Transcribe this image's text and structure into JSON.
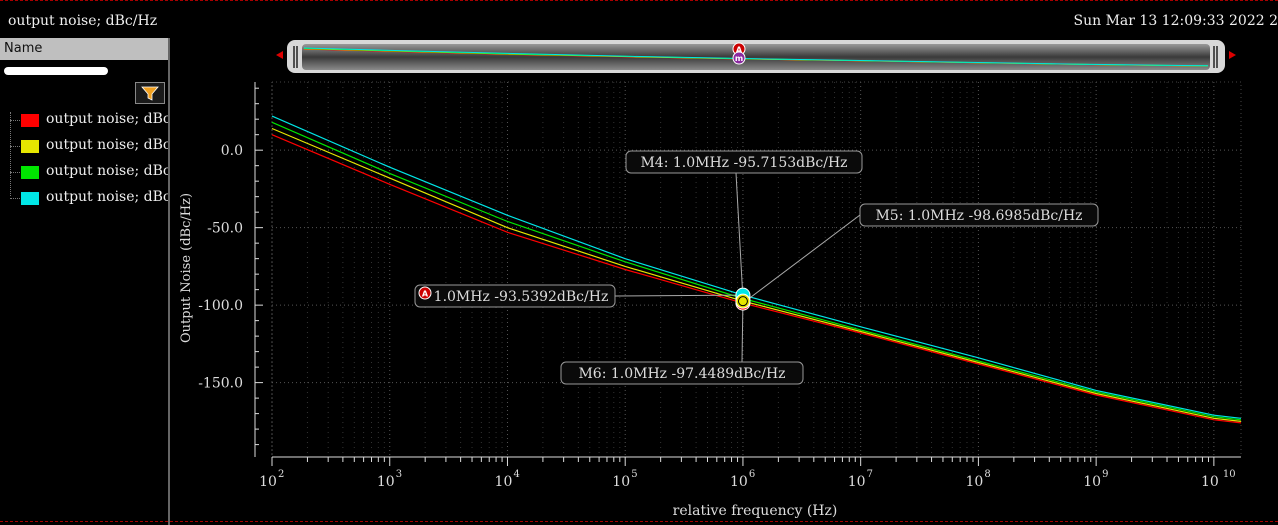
{
  "window": {
    "title": "output noise; dBc/Hz",
    "timestamp": "Sun Mar 13 12:09:33 2022  2"
  },
  "sidebar": {
    "header": "Name",
    "items": [
      {
        "label": "output noise; dBc/Hz",
        "color": "#ff0000"
      },
      {
        "label": "output noise; dBc/Hz",
        "color": "#e6e600"
      },
      {
        "label": "output noise; dBc/Hz",
        "color": "#00e600"
      },
      {
        "label": "output noise; dBc/Hz",
        "color": "#00e6e6"
      }
    ]
  },
  "chart_data": {
    "type": "line",
    "xlabel": "relative frequency (Hz)",
    "ylabel": "Output Noise (dBc/Hz)",
    "xscale": "log",
    "xlim": [
      100,
      17000000000
    ],
    "ylim": [
      -198,
      44
    ],
    "x_ticks": [
      "10",
      "10",
      "10",
      "10",
      "10",
      "10",
      "10",
      "10",
      "10"
    ],
    "x_tick_exponents": [
      "2",
      "3",
      "4",
      "5",
      "6",
      "7",
      "8",
      "9",
      "10"
    ],
    "x_tick_values": [
      100,
      1000,
      10000,
      100000,
      1000000,
      10000000,
      100000000,
      1000000000,
      10000000000
    ],
    "y_ticks": [
      "0.0",
      "-50.0",
      "-100.0",
      "-150.0"
    ],
    "y_tick_values": [
      0,
      -50,
      -100,
      -150
    ],
    "grid": true,
    "x": [
      100,
      1000,
      10000,
      100000,
      1000000,
      10000000,
      100000000,
      1000000000,
      10000000000,
      17000000000
    ],
    "series": [
      {
        "color": "#ff0000",
        "values": [
          10,
          -22,
          -53,
          -77,
          -98.7,
          -118,
          -138,
          -158,
          -174,
          -176
        ]
      },
      {
        "color": "#e6e600",
        "values": [
          14,
          -18,
          -50,
          -75,
          -97.4,
          -117,
          -137,
          -157,
          -173,
          -175
        ]
      },
      {
        "color": "#00e600",
        "values": [
          18,
          -15,
          -46,
          -72,
          -95.7,
          -116,
          -136,
          -156,
          -172,
          -174
        ]
      },
      {
        "color": "#00e6e6",
        "values": [
          22,
          -11,
          -42,
          -70,
          -93.5,
          -114,
          -134,
          -155,
          -171,
          -173
        ]
      }
    ],
    "markers": [
      {
        "label": "M4: 1.0MHz -95.7153dBc/Hz",
        "x": 1000000,
        "y": -95.7153
      },
      {
        "label": "M5: 1.0MHz -98.6985dBc/Hz",
        "x": 1000000,
        "y": -98.6985
      },
      {
        "label": "1.0MHz -93.5392dBc/Hz",
        "badge": "A",
        "x": 1000000,
        "y": -93.5392
      },
      {
        "label": "M6: 1.0MHz -97.4489dBc/Hz",
        "x": 1000000,
        "y": -97.4489
      }
    ]
  },
  "overview": {
    "marker_badge_top": "A",
    "marker_badge_bottom": "m"
  }
}
